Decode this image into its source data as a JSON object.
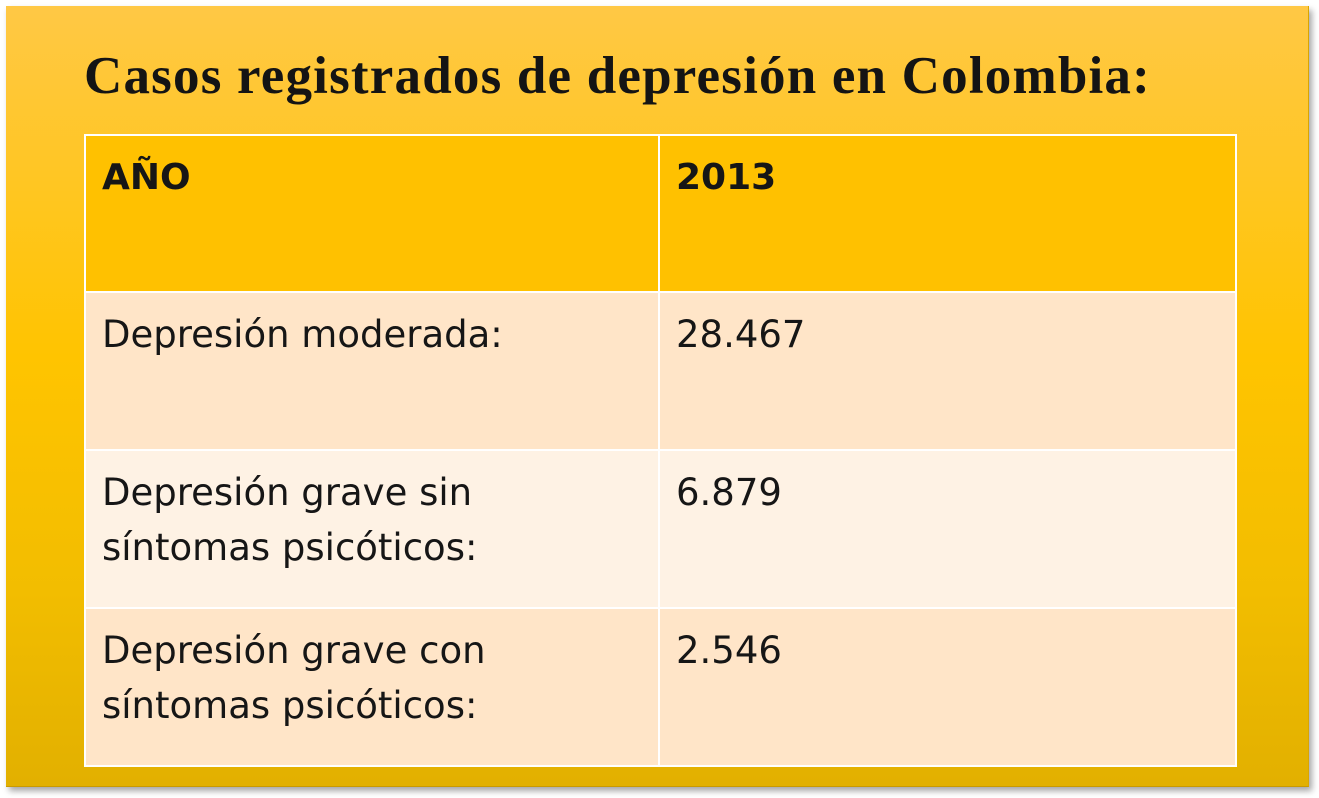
{
  "slide": {
    "title": "Casos registrados de depresión en Colombia:"
  },
  "table": {
    "header": {
      "label": "AÑO",
      "year": "2013"
    },
    "rows": [
      {
        "label": "Depresión moderada:",
        "value": "28.467"
      },
      {
        "label": "Depresión grave sin síntomas psicóticos:",
        "value": "6.879"
      },
      {
        "label": "Depresión grave con síntomas psicóticos:",
        "value": "2.546"
      }
    ]
  },
  "colors": {
    "background_top": "#ffc845",
    "background_bottom": "#e2b000",
    "header_fill": "#ffc100",
    "row_fill_a": "#ffe5c8",
    "row_fill_b": "#fef2e4",
    "text": "#161616"
  }
}
